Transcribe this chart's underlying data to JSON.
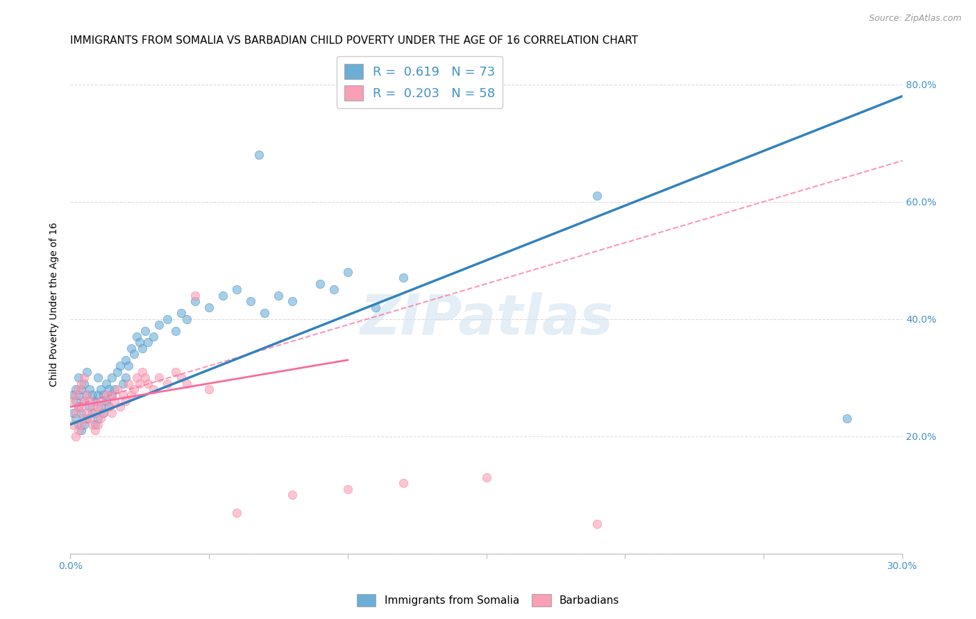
{
  "title": "IMMIGRANTS FROM SOMALIA VS BARBADIAN CHILD POVERTY UNDER THE AGE OF 16 CORRELATION CHART",
  "source": "Source: ZipAtlas.com",
  "ylabel": "Child Poverty Under the Age of 16",
  "xlim": [
    0.0,
    0.3
  ],
  "ylim": [
    0.0,
    0.85
  ],
  "xticks": [
    0.0,
    0.05,
    0.1,
    0.15,
    0.2,
    0.25,
    0.3
  ],
  "xticklabels": [
    "0.0%",
    "",
    "",
    "",
    "",
    "",
    "30.0%"
  ],
  "yticks": [
    0.0,
    0.2,
    0.4,
    0.6,
    0.8
  ],
  "yticklabels": [
    "",
    "20.0%",
    "40.0%",
    "60.0%",
    "80.0%"
  ],
  "scatter_blue_x": [
    0.001,
    0.001,
    0.002,
    0.002,
    0.002,
    0.003,
    0.003,
    0.003,
    0.003,
    0.004,
    0.004,
    0.004,
    0.005,
    0.005,
    0.005,
    0.006,
    0.006,
    0.006,
    0.007,
    0.007,
    0.008,
    0.008,
    0.009,
    0.009,
    0.01,
    0.01,
    0.01,
    0.011,
    0.011,
    0.012,
    0.012,
    0.013,
    0.013,
    0.014,
    0.014,
    0.015,
    0.015,
    0.016,
    0.017,
    0.018,
    0.019,
    0.02,
    0.02,
    0.021,
    0.022,
    0.023,
    0.024,
    0.025,
    0.026,
    0.027,
    0.028,
    0.03,
    0.032,
    0.035,
    0.038,
    0.04,
    0.042,
    0.045,
    0.05,
    0.055,
    0.06,
    0.065,
    0.068,
    0.07,
    0.075,
    0.08,
    0.09,
    0.095,
    0.1,
    0.11,
    0.12,
    0.19,
    0.28
  ],
  "scatter_blue_y": [
    0.24,
    0.27,
    0.23,
    0.26,
    0.28,
    0.22,
    0.25,
    0.27,
    0.3,
    0.21,
    0.24,
    0.28,
    0.22,
    0.26,
    0.29,
    0.23,
    0.27,
    0.31,
    0.25,
    0.28,
    0.24,
    0.27,
    0.22,
    0.26,
    0.23,
    0.27,
    0.3,
    0.25,
    0.28,
    0.24,
    0.27,
    0.26,
    0.29,
    0.25,
    0.28,
    0.27,
    0.3,
    0.28,
    0.31,
    0.32,
    0.29,
    0.3,
    0.33,
    0.32,
    0.35,
    0.34,
    0.37,
    0.36,
    0.35,
    0.38,
    0.36,
    0.37,
    0.39,
    0.4,
    0.38,
    0.41,
    0.4,
    0.43,
    0.42,
    0.44,
    0.45,
    0.43,
    0.68,
    0.41,
    0.44,
    0.43,
    0.46,
    0.45,
    0.48,
    0.42,
    0.47,
    0.61,
    0.23
  ],
  "scatter_pink_x": [
    0.001,
    0.001,
    0.002,
    0.002,
    0.002,
    0.003,
    0.003,
    0.003,
    0.004,
    0.004,
    0.004,
    0.005,
    0.005,
    0.005,
    0.006,
    0.006,
    0.007,
    0.007,
    0.008,
    0.008,
    0.009,
    0.009,
    0.01,
    0.01,
    0.011,
    0.011,
    0.012,
    0.013,
    0.014,
    0.015,
    0.015,
    0.016,
    0.017,
    0.018,
    0.019,
    0.02,
    0.021,
    0.022,
    0.023,
    0.024,
    0.025,
    0.026,
    0.027,
    0.028,
    0.03,
    0.032,
    0.035,
    0.038,
    0.04,
    0.042,
    0.045,
    0.05,
    0.06,
    0.08,
    0.1,
    0.12,
    0.15,
    0.19
  ],
  "scatter_pink_y": [
    0.22,
    0.26,
    0.2,
    0.24,
    0.27,
    0.21,
    0.25,
    0.28,
    0.22,
    0.25,
    0.29,
    0.23,
    0.26,
    0.3,
    0.24,
    0.27,
    0.23,
    0.26,
    0.22,
    0.25,
    0.21,
    0.24,
    0.22,
    0.25,
    0.23,
    0.26,
    0.24,
    0.27,
    0.25,
    0.24,
    0.27,
    0.26,
    0.28,
    0.25,
    0.27,
    0.26,
    0.29,
    0.27,
    0.28,
    0.3,
    0.29,
    0.31,
    0.3,
    0.29,
    0.28,
    0.3,
    0.29,
    0.31,
    0.3,
    0.29,
    0.44,
    0.28,
    0.07,
    0.1,
    0.11,
    0.12,
    0.13,
    0.05
  ],
  "blue_trend_x": [
    0.0,
    0.3
  ],
  "blue_trend_y": [
    0.22,
    0.78
  ],
  "pink_trend_x": [
    0.0,
    0.1
  ],
  "pink_trend_y": [
    0.25,
    0.33
  ],
  "blue_color": "#6baed6",
  "pink_color": "#fa9fb5",
  "blue_line_color": "#3182bd",
  "pink_line_color": "#fb6a9a",
  "R_blue": "0.619",
  "N_blue": "73",
  "R_pink": "0.203",
  "N_pink": "58",
  "legend1": "Immigrants from Somalia",
  "legend2": "Barbadians",
  "watermark": "ZIPatlas",
  "title_fontsize": 11,
  "axis_fontsize": 10,
  "tick_fontsize": 10,
  "background_color": "#ffffff",
  "grid_color": "#dddddd"
}
